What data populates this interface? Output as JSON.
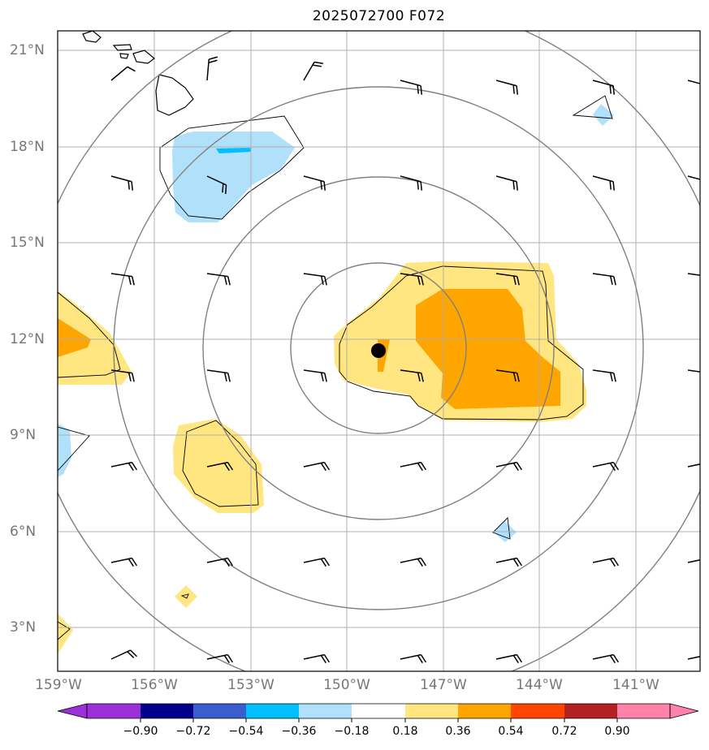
{
  "title": "2025072700 F072",
  "map": {
    "lat_labels": [
      "21°N",
      "18°N",
      "15°N",
      "12°N",
      "9°N",
      "6°N",
      "3°N"
    ],
    "lon_labels": [
      "159°W",
      "156°W",
      "153°W",
      "150°W",
      "147°W",
      "144°W",
      "141°W"
    ],
    "extent": {
      "lon_min": -159,
      "lon_max": -139,
      "lat_min": 1.6,
      "lat_max": 21.6
    },
    "storm_center": {
      "lon": -149.0,
      "lat": 11.65
    },
    "range_ring_color": "#808080",
    "grid_color": "#b0b0b0",
    "land_outline_color": "#000000"
  },
  "colorbar": {
    "tick_labels": [
      "−0.90",
      "−0.72",
      "−0.54",
      "−0.36",
      "−0.18",
      "0.18",
      "0.36",
      "0.54",
      "0.72",
      "0.90"
    ],
    "colors": [
      "#9b30d9",
      "#00008b",
      "#3a5fcd",
      "#00bfff",
      "#b0e0fa",
      "#ffffff",
      "#ffe680",
      "#ffa500",
      "#ff4500",
      "#b22222",
      "#ff82ab"
    ]
  },
  "shading_colors": {
    "light_blue": "#b0e0fa",
    "blue": "#00bfff",
    "light_yellow": "#ffe680",
    "orange": "#ffa500"
  }
}
